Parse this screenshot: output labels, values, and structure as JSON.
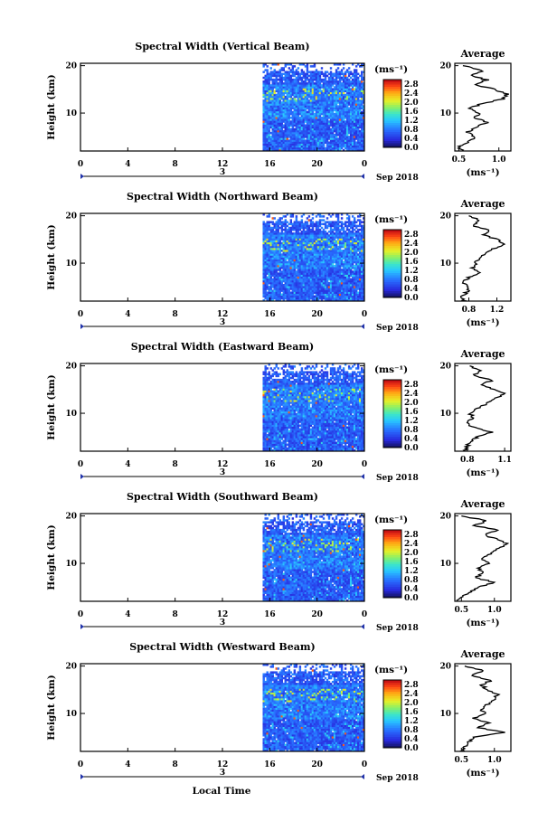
{
  "figure": {
    "xlabel": "Local Time",
    "date_label": "3",
    "month_label": "Sep 2018"
  },
  "chart_data": [
    {
      "type": "heatmap",
      "title": "Spectral Width (Vertical Beam)",
      "ylabel": "Height (km)",
      "xlabel": "Local Time",
      "xticks": [
        "0",
        "4",
        "8",
        "12",
        "16",
        "20",
        "0"
      ],
      "xlim": [
        0,
        24
      ],
      "yticks": [
        "10",
        "20"
      ],
      "ylim": [
        2,
        20.5
      ],
      "data_start_hour": 15.4,
      "colorbar": {
        "unit": "(ms⁻¹)",
        "ticks": [
          "2.8",
          "2.4",
          "2.0",
          "1.6",
          "1.2",
          "0.8",
          "0.4",
          "0.0"
        ],
        "range": [
          0.0,
          3.0
        ]
      },
      "average_profile": {
        "title": "Average",
        "xlabel": "(ms⁻¹)",
        "xticks": [
          "0.5",
          "1.0"
        ],
        "xlim": [
          0.45,
          1.15
        ],
        "yticks": [
          "10",
          "20"
        ],
        "height": [
          2,
          3,
          4,
          5,
          6,
          7,
          8,
          9,
          10,
          11,
          12,
          13,
          14,
          15,
          16,
          17,
          18,
          19,
          20
        ],
        "width": [
          0.55,
          0.5,
          0.62,
          0.7,
          0.6,
          0.72,
          0.85,
          0.7,
          0.75,
          0.62,
          0.8,
          1.05,
          1.1,
          0.95,
          0.7,
          0.85,
          0.65,
          0.8,
          0.55
        ]
      }
    },
    {
      "type": "heatmap",
      "title": "Spectral Width (Northward Beam)",
      "ylabel": "Height (km)",
      "xlabel": "Local Time",
      "xticks": [
        "0",
        "4",
        "8",
        "12",
        "16",
        "20",
        "0"
      ],
      "xlim": [
        0,
        24
      ],
      "yticks": [
        "10",
        "20"
      ],
      "ylim": [
        2,
        20.5
      ],
      "data_start_hour": 15.4,
      "colorbar": {
        "unit": "(ms⁻¹)",
        "ticks": [
          "2.8",
          "2.4",
          "2.0",
          "1.6",
          "1.2",
          "0.8",
          "0.4",
          "0.0"
        ],
        "range": [
          0.0,
          3.0
        ]
      },
      "average_profile": {
        "title": "Average",
        "xlabel": "(ms⁻¹)",
        "xticks": [
          "0.8",
          "1.2"
        ],
        "xlim": [
          0.6,
          1.4
        ],
        "yticks": [
          "10",
          "20"
        ],
        "height": [
          2,
          3,
          4,
          5,
          6,
          7,
          8,
          9,
          10,
          11,
          12,
          13,
          14,
          15,
          16,
          17,
          18,
          19,
          20
        ],
        "width": [
          0.75,
          0.7,
          0.78,
          0.82,
          0.72,
          0.8,
          0.95,
          0.85,
          0.9,
          0.95,
          1.05,
          1.15,
          1.3,
          1.2,
          1.0,
          1.1,
          0.85,
          0.95,
          0.8
        ]
      }
    },
    {
      "type": "heatmap",
      "title": "Spectral Width (Eastward Beam)",
      "ylabel": "Height (km)",
      "xlabel": "Local Time",
      "xticks": [
        "0",
        "4",
        "8",
        "12",
        "16",
        "20",
        "0"
      ],
      "xlim": [
        0,
        24
      ],
      "yticks": [
        "10",
        "20"
      ],
      "ylim": [
        2,
        20.5
      ],
      "data_start_hour": 15.4,
      "colorbar": {
        "unit": "(ms⁻¹)",
        "ticks": [
          "2.8",
          "2.4",
          "2.0",
          "1.6",
          "1.2",
          "0.8",
          "0.4",
          "0.0"
        ],
        "range": [
          0.0,
          3.0
        ]
      },
      "average_profile": {
        "title": "Average",
        "xlabel": "(ms⁻¹)",
        "xticks": [
          "0.8",
          "1.1"
        ],
        "xlim": [
          0.7,
          1.15
        ],
        "yticks": [
          "10",
          "20"
        ],
        "height": [
          2,
          3,
          4,
          5,
          6,
          7,
          8,
          9,
          10,
          11,
          12,
          13,
          14,
          15,
          16,
          17,
          18,
          19,
          20
        ],
        "width": [
          0.78,
          0.8,
          0.82,
          0.88,
          1.0,
          0.85,
          0.8,
          0.85,
          0.82,
          0.88,
          0.95,
          1.0,
          1.1,
          1.02,
          0.92,
          1.0,
          0.85,
          0.9,
          0.82
        ]
      }
    },
    {
      "type": "heatmap",
      "title": "Spectral Width (Southward Beam)",
      "ylabel": "Height (km)",
      "xlabel": "Local Time",
      "xticks": [
        "0",
        "4",
        "8",
        "12",
        "16",
        "20",
        "0"
      ],
      "xlim": [
        0,
        24
      ],
      "yticks": [
        "10",
        "20"
      ],
      "ylim": [
        2,
        20.5
      ],
      "data_start_hour": 15.4,
      "colorbar": {
        "unit": "(ms⁻¹)",
        "ticks": [
          "2.8",
          "2.4",
          "2.0",
          "1.6",
          "1.2",
          "0.8",
          "0.4",
          "0.0"
        ],
        "range": [
          0.0,
          3.0
        ]
      },
      "average_profile": {
        "title": "Average",
        "xlabel": "(ms⁻¹)",
        "xticks": [
          "0.5",
          "1.0"
        ],
        "xlim": [
          0.4,
          1.25
        ],
        "yticks": [
          "10",
          "20"
        ],
        "height": [
          2,
          3,
          4,
          5,
          6,
          7,
          8,
          9,
          10,
          11,
          12,
          13,
          14,
          15,
          16,
          17,
          18,
          19,
          20
        ],
        "width": [
          0.45,
          0.5,
          0.65,
          0.75,
          1.0,
          0.7,
          0.85,
          0.75,
          0.9,
          0.8,
          0.95,
          1.05,
          1.2,
          1.05,
          0.85,
          1.05,
          0.7,
          0.9,
          0.5
        ]
      }
    },
    {
      "type": "heatmap",
      "title": "Spectral Width (Westward Beam)",
      "ylabel": "Height (km)",
      "xlabel": "Local Time",
      "xticks": [
        "0",
        "4",
        "8",
        "12",
        "16",
        "20",
        "0"
      ],
      "xlim": [
        0,
        24
      ],
      "yticks": [
        "10",
        "20"
      ],
      "ylim": [
        2,
        20.5
      ],
      "data_start_hour": 15.4,
      "colorbar": {
        "unit": "(ms⁻¹)",
        "ticks": [
          "2.8",
          "2.4",
          "2.0",
          "1.6",
          "1.2",
          "0.8",
          "0.4",
          "0.0"
        ],
        "range": [
          0.0,
          3.0
        ]
      },
      "average_profile": {
        "title": "Average",
        "xlabel": "(ms⁻¹)",
        "xticks": [
          "0.5",
          "1.0"
        ],
        "xlim": [
          0.4,
          1.25
        ],
        "yticks": [
          "10",
          "20"
        ],
        "height": [
          2,
          3,
          4,
          5,
          6,
          7,
          8,
          9,
          10,
          11,
          12,
          13,
          14,
          15,
          16,
          17,
          18,
          19,
          20
        ],
        "width": [
          0.5,
          0.55,
          0.6,
          0.7,
          1.15,
          0.75,
          0.9,
          0.7,
          0.85,
          0.8,
          0.9,
          1.0,
          1.05,
          0.9,
          0.8,
          0.95,
          0.65,
          0.85,
          0.55
        ]
      }
    }
  ]
}
